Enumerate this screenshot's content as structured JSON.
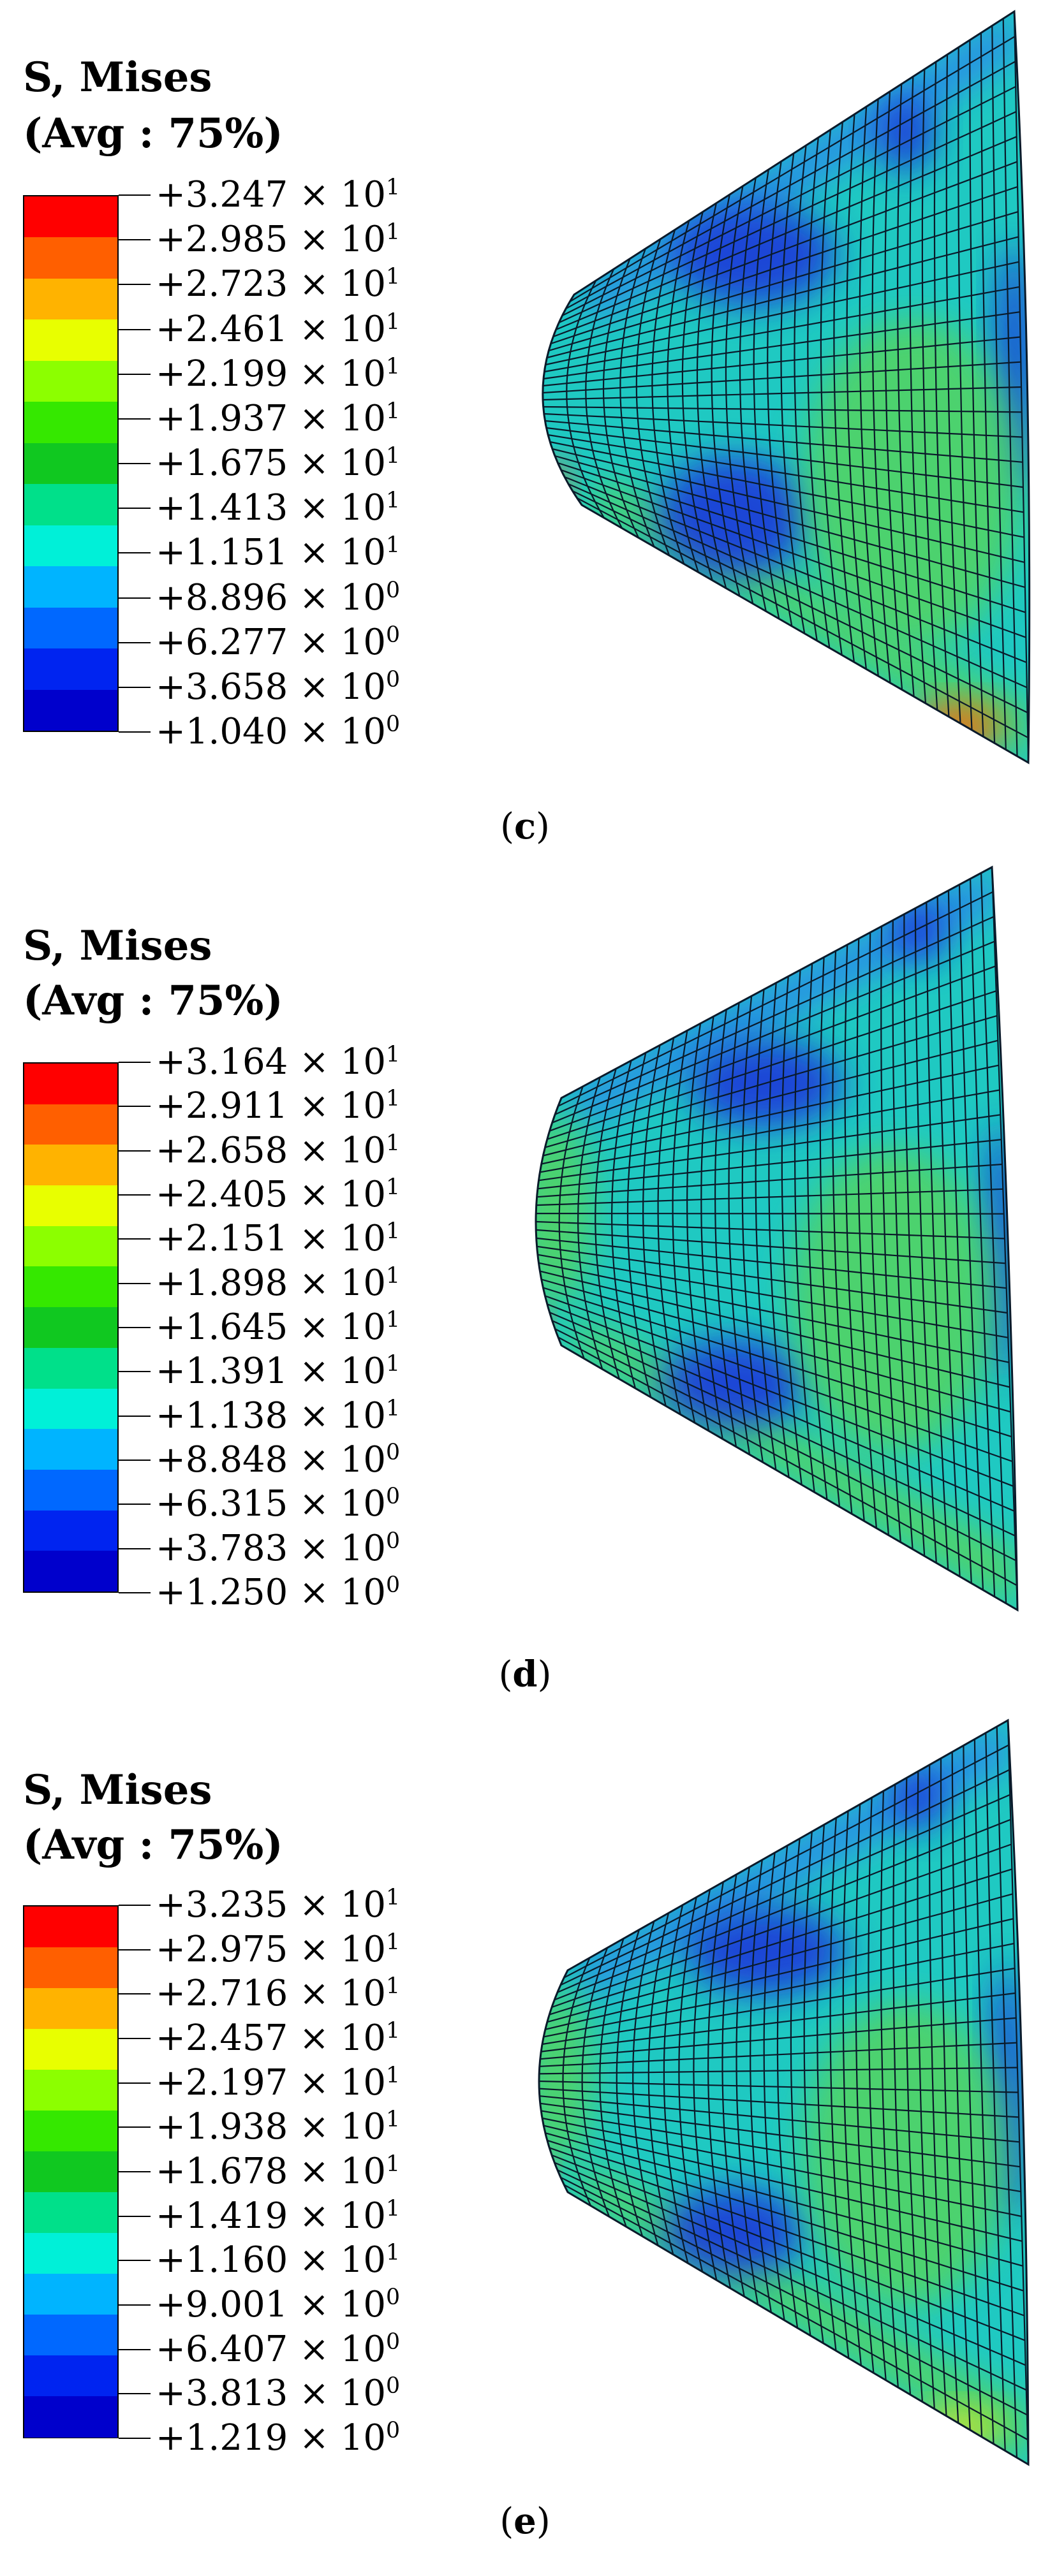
{
  "panels": [
    {
      "label": "c",
      "legend_title_line1": "S, Mises",
      "legend_title_line2": "(Avg : 75%)",
      "values": [
        {
          "mant": "+3.247 × 10",
          "exp": "1"
        },
        {
          "mant": "+2.985 × 10",
          "exp": "1"
        },
        {
          "mant": "+2.723 × 10",
          "exp": "1"
        },
        {
          "mant": "+2.461 × 10",
          "exp": "1"
        },
        {
          "mant": "+2.199 × 10",
          "exp": "1"
        },
        {
          "mant": "+1.937 × 10",
          "exp": "1"
        },
        {
          "mant": "+1.675 × 10",
          "exp": "1"
        },
        {
          "mant": "+1.413 × 10",
          "exp": "1"
        },
        {
          "mant": "+1.151 × 10",
          "exp": "1"
        },
        {
          "mant": "+8.896 × 10",
          "exp": "0"
        },
        {
          "mant": "+6.277 × 10",
          "exp": "0"
        },
        {
          "mant": "+3.658 × 10",
          "exp": "0"
        },
        {
          "mant": "+1.040 × 10",
          "exp": "0"
        }
      ]
    },
    {
      "label": "d",
      "legend_title_line1": "S, Mises",
      "legend_title_line2": "(Avg : 75%)",
      "values": [
        {
          "mant": "+3.164 × 10",
          "exp": "1"
        },
        {
          "mant": "+2.911 × 10",
          "exp": "1"
        },
        {
          "mant": "+2.658 × 10",
          "exp": "1"
        },
        {
          "mant": "+2.405 × 10",
          "exp": "1"
        },
        {
          "mant": "+2.151 × 10",
          "exp": "1"
        },
        {
          "mant": "+1.898 × 10",
          "exp": "1"
        },
        {
          "mant": "+1.645 × 10",
          "exp": "1"
        },
        {
          "mant": "+1.391 × 10",
          "exp": "1"
        },
        {
          "mant": "+1.138 × 10",
          "exp": "1"
        },
        {
          "mant": "+8.848 × 10",
          "exp": "0"
        },
        {
          "mant": "+6.315 × 10",
          "exp": "0"
        },
        {
          "mant": "+3.783 × 10",
          "exp": "0"
        },
        {
          "mant": "+1.250 × 10",
          "exp": "0"
        }
      ]
    },
    {
      "label": "e",
      "legend_title_line1": "S, Mises",
      "legend_title_line2": "(Avg : 75%)",
      "values": [
        {
          "mant": "+3.235 × 10",
          "exp": "1"
        },
        {
          "mant": "+2.975 × 10",
          "exp": "1"
        },
        {
          "mant": "+2.716 × 10",
          "exp": "1"
        },
        {
          "mant": "+2.457 × 10",
          "exp": "1"
        },
        {
          "mant": "+2.197 × 10",
          "exp": "1"
        },
        {
          "mant": "+1.938 × 10",
          "exp": "1"
        },
        {
          "mant": "+1.678 × 10",
          "exp": "1"
        },
        {
          "mant": "+1.419 × 10",
          "exp": "1"
        },
        {
          "mant": "+1.160 × 10",
          "exp": "1"
        },
        {
          "mant": "+9.001 × 10",
          "exp": "0"
        },
        {
          "mant": "+6.407 × 10",
          "exp": "0"
        },
        {
          "mant": "+3.813 × 10",
          "exp": "0"
        },
        {
          "mant": "+1.219 × 10",
          "exp": "0"
        }
      ]
    }
  ],
  "colorbar": [
    "#ff0000",
    "#ff5f00",
    "#ffb300",
    "#e8ff00",
    "#8cff00",
    "#35e800",
    "#10c820",
    "#00e08a",
    "#00f0d8",
    "#00b4ff",
    "#0068ff",
    "#0024f0",
    "#0000cc"
  ],
  "mesh_colors": {
    "base": "#1fc9c2",
    "low": "#1b3fd8",
    "lowest": "#1722bf",
    "mid_green": "#4fd36a",
    "edge_blue": "#2a8ae8",
    "hot": "#ff6a00",
    "yellow": "#d8e81a",
    "grid": "#0a1a2a"
  }
}
